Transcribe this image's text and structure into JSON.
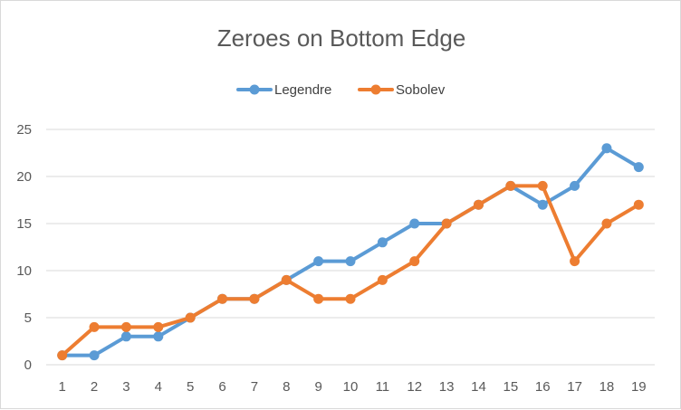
{
  "chart_data": {
    "type": "line",
    "title": "Zeroes on Bottom Edge",
    "xlabel": "",
    "ylabel": "",
    "categories": [
      "1",
      "2",
      "3",
      "4",
      "5",
      "6",
      "7",
      "8",
      "9",
      "10",
      "11",
      "12",
      "13",
      "14",
      "15",
      "16",
      "17",
      "18",
      "19"
    ],
    "ylim": [
      0,
      25
    ],
    "yticks": [
      "0",
      "5",
      "10",
      "15",
      "20",
      "25"
    ],
    "grid": true,
    "legend": "top",
    "series": [
      {
        "name": "Legendre",
        "color": "#5b9bd5",
        "values": [
          1,
          1,
          3,
          3,
          5,
          7,
          7,
          9,
          11,
          11,
          13,
          15,
          15,
          17,
          19,
          17,
          19,
          23,
          21
        ]
      },
      {
        "name": "Sobolev",
        "color": "#ed7d31",
        "values": [
          1,
          4,
          4,
          4,
          5,
          7,
          7,
          9,
          7,
          7,
          9,
          11,
          15,
          17,
          19,
          19,
          11,
          15,
          17
        ]
      }
    ]
  }
}
